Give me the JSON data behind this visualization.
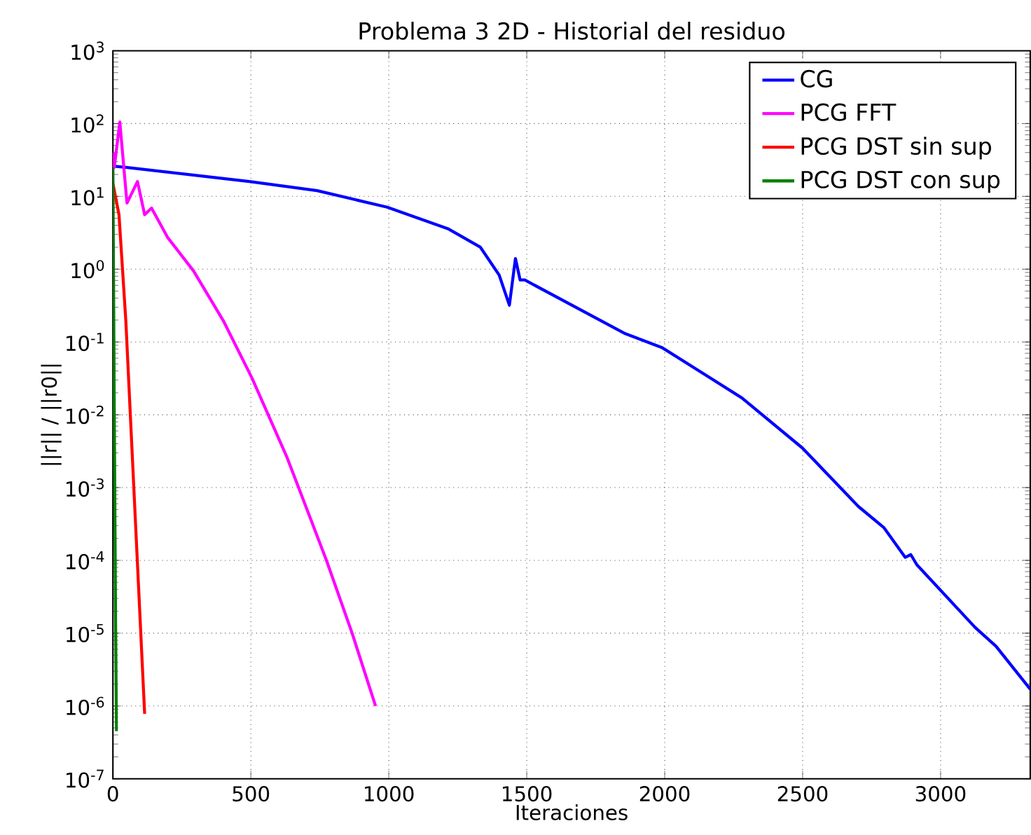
{
  "chart_data": {
    "type": "line",
    "title": "Problema 3 2D - Historial del residuo",
    "xlabel": "Iteraciones",
    "ylabel": "||r|| / ||r0||",
    "log": "y",
    "grid": true,
    "legend": "top right",
    "xlim": [
      0,
      3325
    ],
    "xticks": [
      0,
      500,
      1000,
      1500,
      2000,
      2500,
      3000
    ],
    "ylim": [
      1e-07,
      1000
    ],
    "yticks": [
      {
        "value": 1e-07,
        "label": "10$^{-7}$"
      },
      {
        "value": 1e-06,
        "label": "10$^{-6}$"
      },
      {
        "value": 1e-05,
        "label": "10$^{-5}$"
      },
      {
        "value": 0.0001,
        "label": "10$^{-4}$"
      },
      {
        "value": 0.001,
        "label": "10$^{-3}$"
      },
      {
        "value": 0.01,
        "label": "10$^{-2}$"
      },
      {
        "value": 0.1,
        "label": "10$^{-1}$"
      },
      {
        "value": 1,
        "label": "10$^{0}$"
      },
      {
        "value": 10,
        "label": "10$^{1}$"
      },
      {
        "value": 100,
        "label": "10$^{2}$"
      },
      {
        "value": 1000,
        "label": "10$^{3}$"
      }
    ],
    "series": [
      {
        "name": "CG",
        "color": "#0000ff",
        "x": [
          0,
          47,
          495,
          740,
          994,
          1214,
          1332,
          1400,
          1437,
          1459,
          1476,
          1493,
          1857,
          1992,
          2280,
          2499,
          2702,
          2795,
          2872,
          2892,
          2914,
          3125,
          3201,
          3325
        ],
        "values": [
          26,
          25,
          16,
          12,
          7.1,
          3.6,
          2.0,
          0.83,
          0.32,
          1.4,
          0.71,
          0.71,
          0.13,
          0.083,
          0.017,
          0.0035,
          0.00055,
          0.00028,
          0.00011,
          0.00012,
          8.7e-05,
          1.2e-05,
          6.6e-06,
          1.7e-06
        ]
      },
      {
        "name": "PCG FFT",
        "color": "#ff00ff",
        "x": [
          0,
          5,
          25,
          51,
          89,
          115,
          140,
          199,
          292,
          402,
          504,
          631,
          673,
          774,
          867,
          952
        ],
        "values": [
          40,
          25,
          105,
          8.1,
          16,
          5.6,
          6.9,
          2.7,
          0.95,
          0.19,
          0.032,
          0.0026,
          0.001,
          0.0001,
          1e-05,
          1e-06
        ]
      },
      {
        "name": "PCG DST sin sup",
        "color": "#ff0000",
        "x": [
          0,
          22,
          47,
          64,
          115
        ],
        "values": [
          15,
          5.6,
          0.19,
          0.0085,
          7.8e-07
        ]
      },
      {
        "name": "PCG DST con sup",
        "color": "#008000",
        "x": [
          0,
          5,
          10,
          13
        ],
        "values": [
          25,
          0.01,
          1e-05,
          4.5e-07
        ]
      }
    ]
  }
}
